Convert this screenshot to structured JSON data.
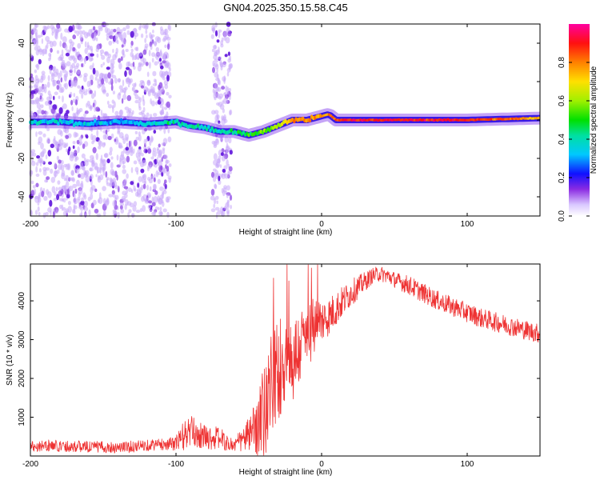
{
  "title": "GN04.2025.350.15.58.C45",
  "chart_data": [
    {
      "type": "heatmap",
      "title": "GN04.2025.350.15.58.C45",
      "xlabel": "Height of straight line (km)",
      "ylabel": "Frequency (Hz)",
      "xlim": [
        -200,
        150
      ],
      "ylim": [
        -50,
        50
      ],
      "x_ticks": [
        -200,
        -100,
        0,
        100
      ],
      "y_ticks": [
        -40,
        -20,
        0,
        20,
        40
      ],
      "colorbar": {
        "label": "Normalized spectral amplitude",
        "range": [
          0.0,
          1.0
        ],
        "ticks": [
          0.0,
          0.2,
          0.4,
          0.6,
          0.8
        ],
        "tick_labels": [
          "0.0",
          "0.2",
          "0.4",
          "0.6",
          "0.8"
        ]
      },
      "scatter_bands": [
        {
          "x_range": [
            -200,
            -104
          ],
          "density": "high"
        },
        {
          "x_range": [
            -75,
            -62
          ],
          "density": "medium"
        }
      ],
      "ridge": {
        "x": [
          -200,
          -180,
          -160,
          -140,
          -120,
          -100,
          -90,
          -80,
          -70,
          -60,
          -50,
          -40,
          -30,
          -20,
          -10,
          0,
          5,
          10,
          20,
          50,
          100,
          150
        ],
        "y": [
          -1,
          -1,
          -2,
          -1,
          -2,
          -1,
          -3,
          -4,
          -6,
          -6,
          -8,
          -6,
          -3,
          0,
          0,
          2,
          3,
          0,
          0,
          0,
          0,
          1
        ],
        "amplitude": [
          0.35,
          0.35,
          0.35,
          0.3,
          0.35,
          0.4,
          0.4,
          0.4,
          0.4,
          0.45,
          0.5,
          0.55,
          0.6,
          0.8,
          0.8,
          0.75,
          0.8,
          0.85,
          0.9,
          0.9,
          0.9,
          0.75
        ]
      }
    },
    {
      "type": "line",
      "xlabel": "Height of straight line (km)",
      "ylabel": "SNR (10 * v/v)",
      "xlim": [
        -200,
        150
      ],
      "ylim": [
        0,
        4950
      ],
      "x_ticks": [
        -200,
        -100,
        0,
        100
      ],
      "y_ticks": [
        1000,
        2000,
        3000,
        4000
      ],
      "color": "#ee3333",
      "series": [
        {
          "name": "SNR",
          "x": [
            -200,
            -190,
            -180,
            -170,
            -160,
            -150,
            -140,
            -130,
            -120,
            -110,
            -105,
            -100,
            -95,
            -90,
            -85,
            -80,
            -75,
            -70,
            -65,
            -60,
            -55,
            -50,
            -45,
            -40,
            -35,
            -30,
            -25,
            -20,
            -15,
            -10,
            -5,
            0,
            5,
            10,
            20,
            30,
            35,
            40,
            45,
            50,
            60,
            70,
            80,
            90,
            100,
            110,
            120,
            130,
            140,
            150
          ],
          "y": [
            250,
            270,
            260,
            250,
            240,
            230,
            220,
            240,
            280,
            300,
            310,
            330,
            500,
            650,
            550,
            500,
            450,
            480,
            320,
            280,
            400,
            550,
            700,
            1100,
            1800,
            2200,
            2600,
            2400,
            2800,
            3100,
            3300,
            3500,
            3600,
            3800,
            4200,
            4500,
            4650,
            4700,
            4650,
            4550,
            4400,
            4200,
            4000,
            3850,
            3700,
            3550,
            3450,
            3350,
            3250,
            3150
          ],
          "noise": [
            150,
            150,
            150,
            150,
            150,
            150,
            150,
            150,
            150,
            150,
            150,
            200,
            400,
            400,
            350,
            300,
            300,
            300,
            200,
            200,
            300,
            450,
            700,
            1200,
            1400,
            1400,
            1300,
            1200,
            1000,
            900,
            800,
            600,
            500,
            450,
            350,
            250,
            200,
            200,
            200,
            200,
            250,
            250,
            250,
            250,
            250,
            250,
            250,
            250,
            250,
            250
          ]
        }
      ]
    }
  ]
}
